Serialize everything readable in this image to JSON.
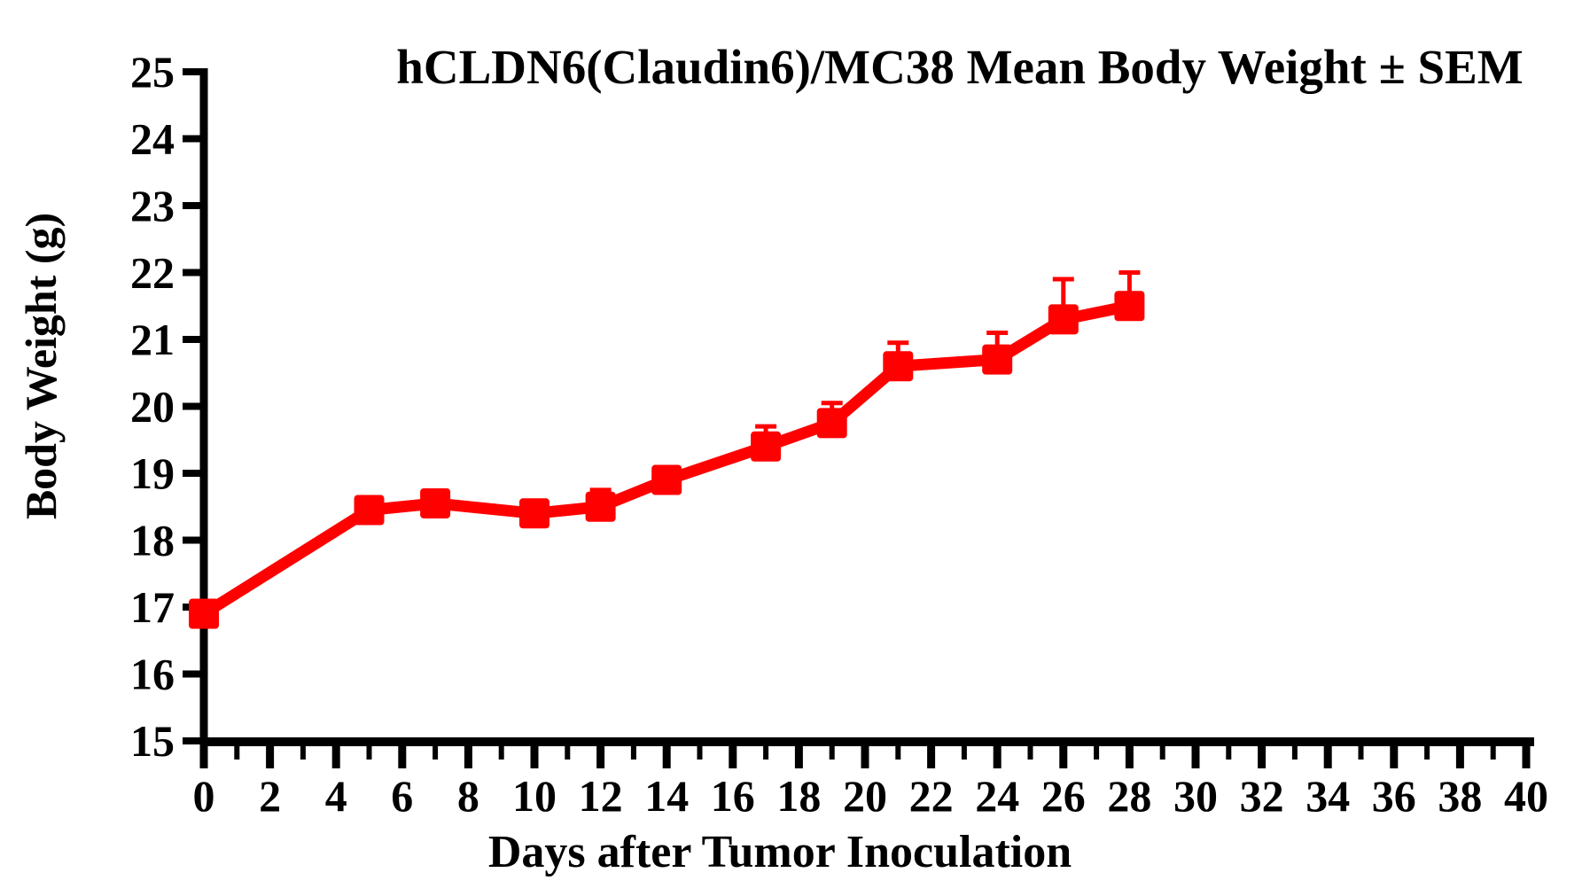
{
  "chart_data": {
    "type": "line",
    "title": "hCLDN6(Claudin6)/MC38 Mean Body Weight ± SEM",
    "xlabel": "Days after Tumor Inoculation",
    "ylabel": "Body Weight (g)",
    "xlim": [
      0,
      40
    ],
    "ylim": [
      15,
      25
    ],
    "x_major_ticks": [
      0,
      2,
      4,
      6,
      8,
      10,
      12,
      14,
      16,
      18,
      20,
      22,
      24,
      26,
      28,
      30,
      32,
      34,
      36,
      38,
      40
    ],
    "x_minor_ticks": [
      1,
      3,
      5,
      7,
      9,
      11,
      13,
      15,
      17,
      19,
      21,
      23,
      25,
      27,
      29,
      31,
      33,
      35,
      37,
      39
    ],
    "y_ticks": [
      15,
      16,
      17,
      18,
      19,
      20,
      21,
      22,
      23,
      24,
      25
    ],
    "grid": false,
    "legend": "none",
    "error_bars": "upper-only SEM caps",
    "series": [
      {
        "name": "hCLDN6(Claudin6)/MC38",
        "color": "#FF0000",
        "marker": "filled-square",
        "x": [
          0,
          5,
          7,
          10,
          12,
          14,
          17,
          19,
          21,
          24,
          26,
          28
        ],
        "y": [
          16.9,
          18.45,
          18.55,
          18.4,
          18.5,
          18.9,
          19.4,
          19.75,
          20.6,
          20.7,
          21.3,
          21.5
        ],
        "sem": [
          0,
          0,
          0,
          0,
          0.25,
          0,
          0.3,
          0.3,
          0.35,
          0.4,
          0.6,
          0.5
        ]
      }
    ]
  },
  "colors": {
    "series": "#FF0000",
    "axis": "#000000",
    "text": "#000000",
    "background": "#FFFFFF"
  }
}
